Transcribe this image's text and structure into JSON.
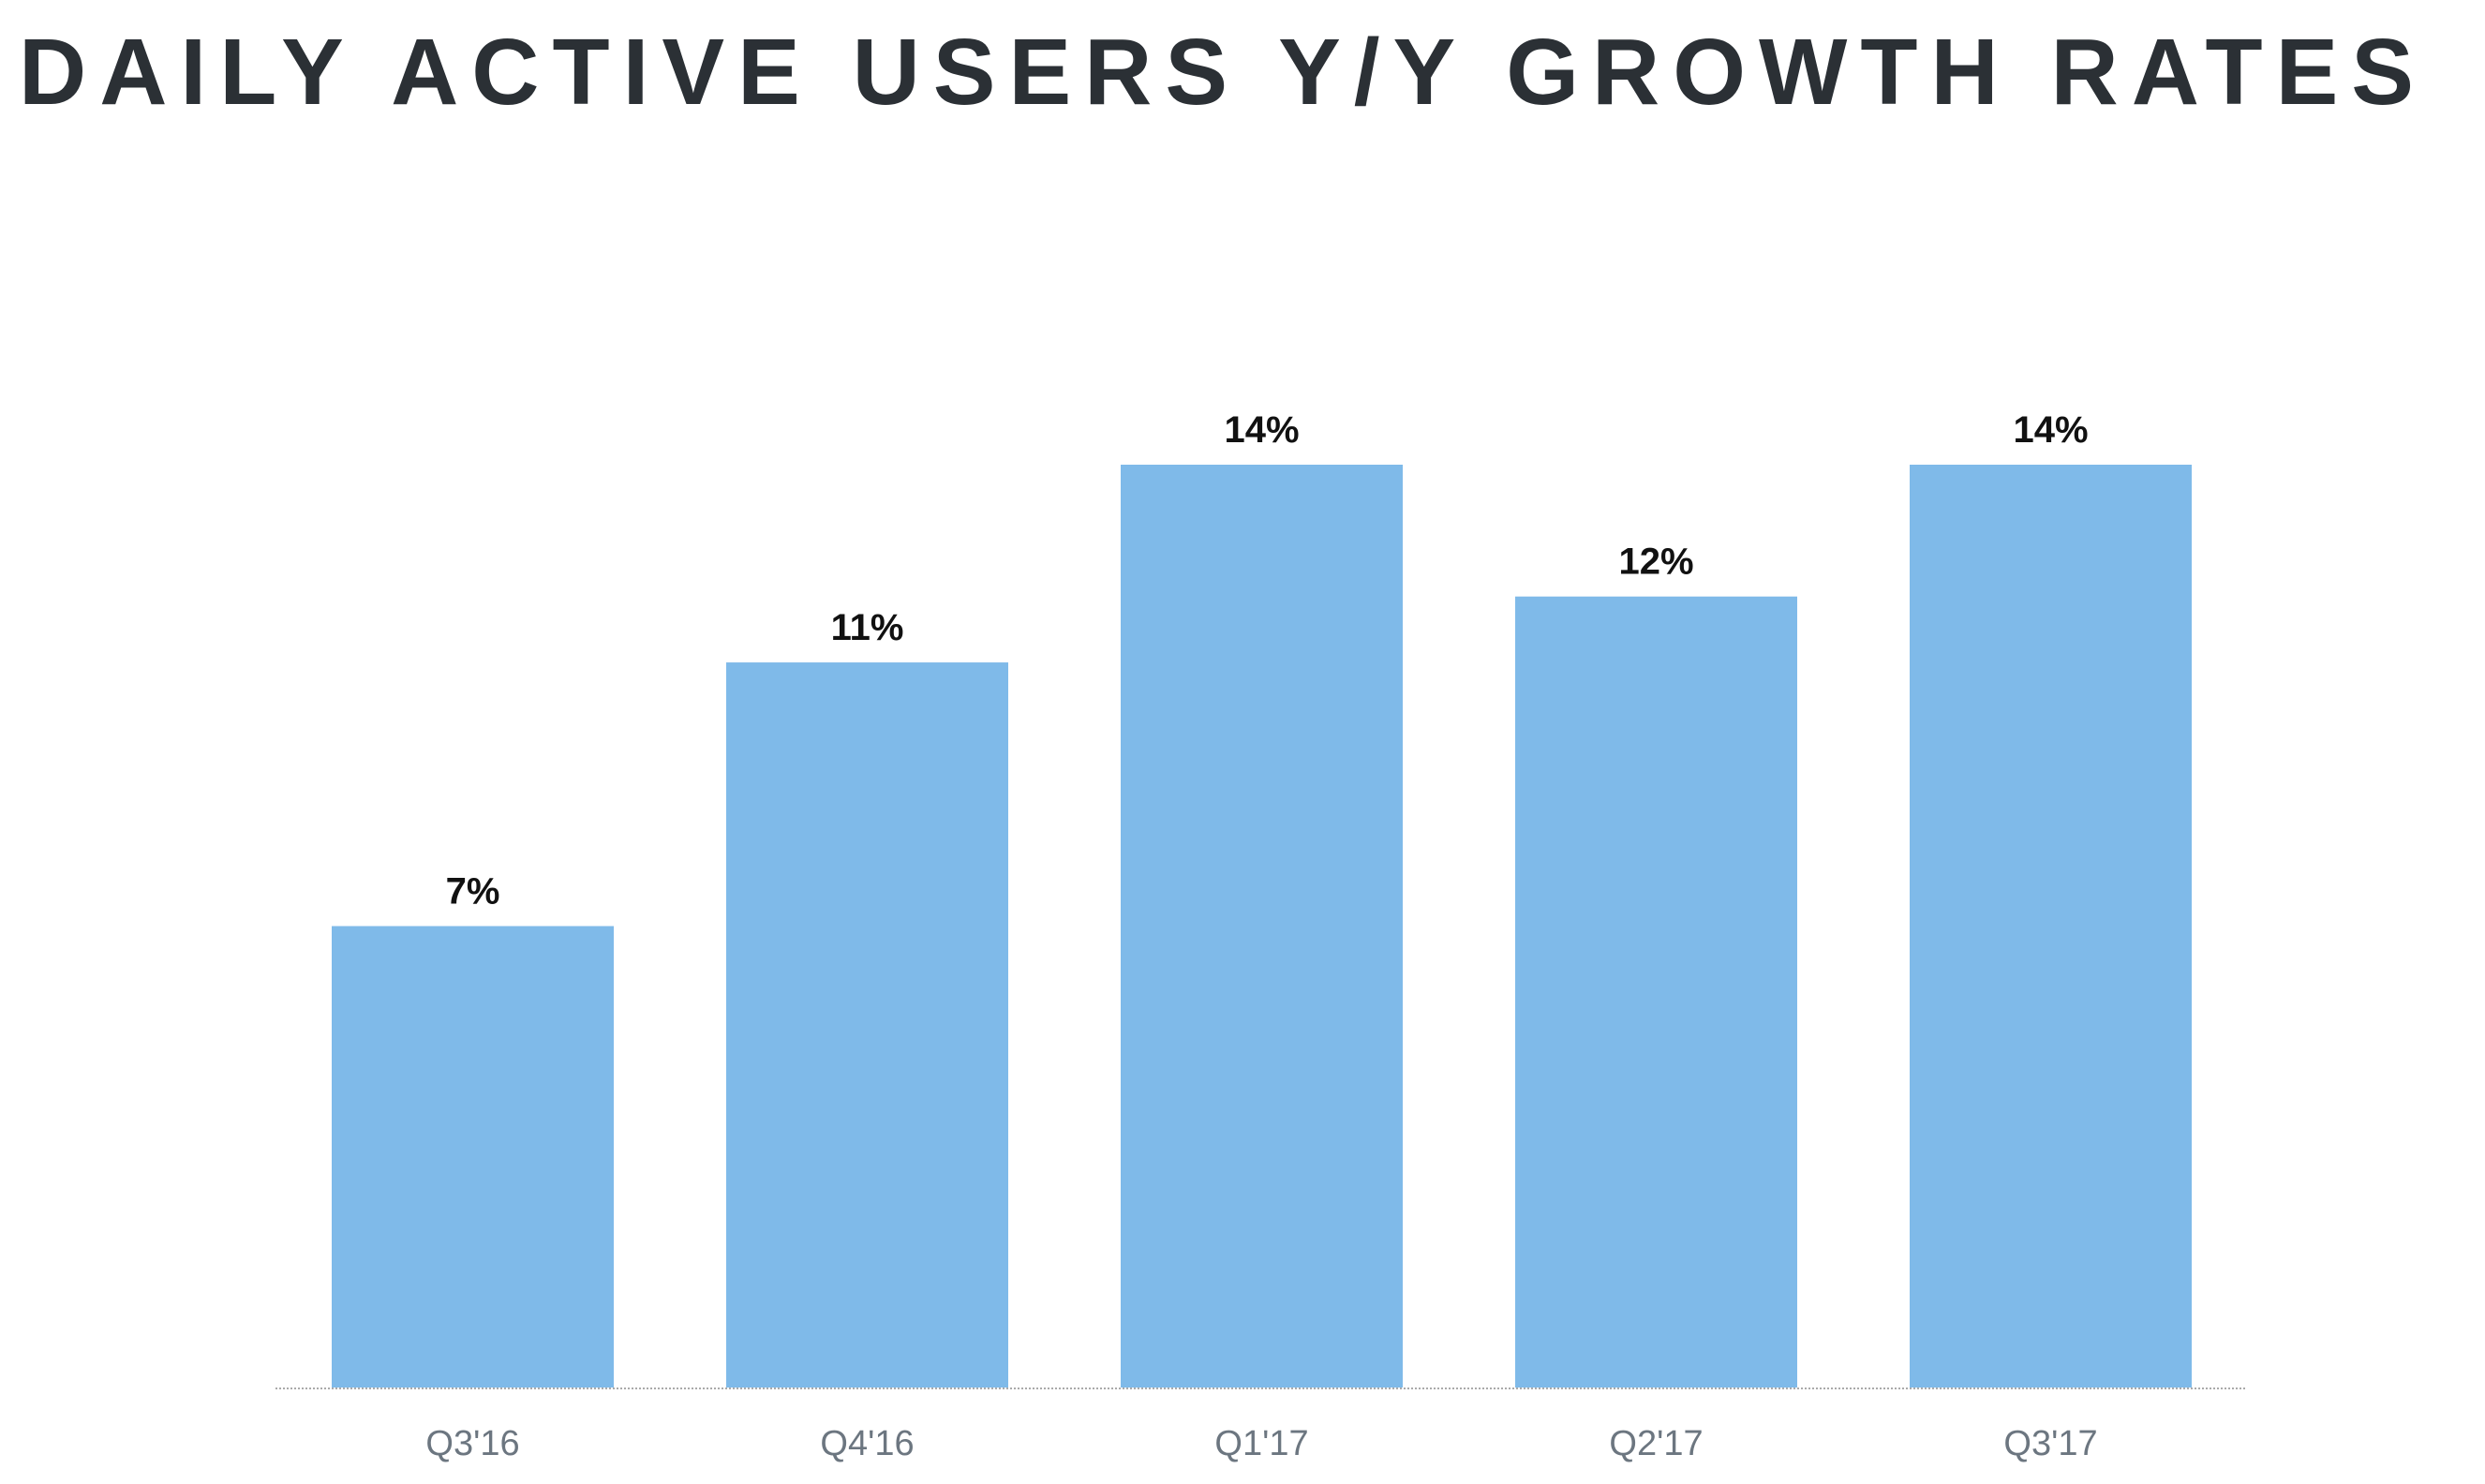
{
  "chart_data": {
    "type": "bar",
    "title": "DAILY ACTIVE USERS Y/Y GROWTH RATES",
    "categories": [
      "Q3'16",
      "Q4'16",
      "Q1'17",
      "Q2'17",
      "Q3'17"
    ],
    "values": [
      7,
      11,
      14,
      12,
      14
    ],
    "data_labels": [
      "7%",
      "11%",
      "14%",
      "12%",
      "14%"
    ],
    "xlabel": "",
    "ylabel": "",
    "ylim": [
      0,
      14
    ],
    "grid": false,
    "colors": {
      "bar": "#7fbae9",
      "title": "#2b3035",
      "tick_label": "#6c7680",
      "data_label": "#111111",
      "axis": "#aaaaaa"
    }
  }
}
